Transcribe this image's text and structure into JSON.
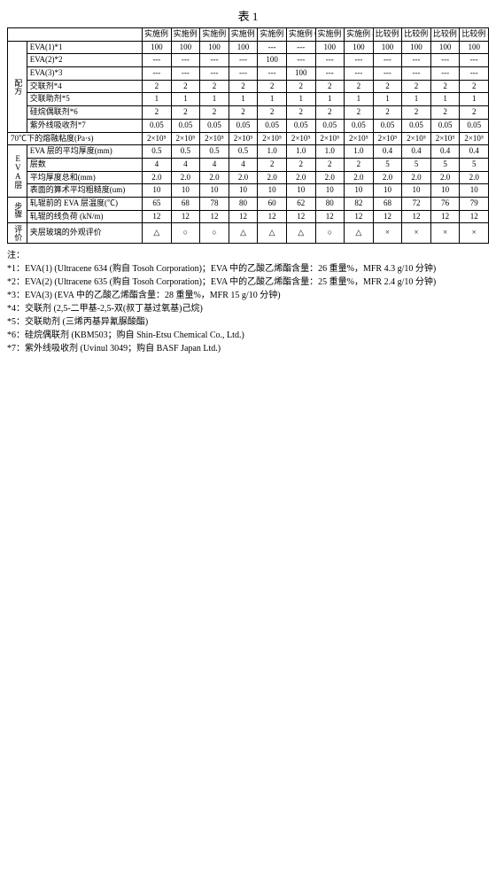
{
  "title": "表 1",
  "col_headers": [
    "实施例 1",
    "实施例 2",
    "实施例 3",
    "实施例 4",
    "实施例 5",
    "实施例 6",
    "实施例 7",
    "实施例 8",
    "比较例 1",
    "比较例 2",
    "比较例 3",
    "比较例 4"
  ],
  "groups": {
    "mix": "配方",
    "eva_layer": "EVA层",
    "step": "步骤",
    "eval": "评价"
  },
  "rows": {
    "r01": {
      "label": "EVA(1)*1",
      "v": [
        "100",
        "100",
        "100",
        "100",
        "---",
        "---",
        "100",
        "100",
        "100",
        "100",
        "100",
        "100"
      ]
    },
    "r02": {
      "label": "EVA(2)*2",
      "v": [
        "---",
        "---",
        "---",
        "---",
        "100",
        "---",
        "---",
        "---",
        "---",
        "---",
        "---",
        "---"
      ]
    },
    "r03": {
      "label": "EVA(3)*3",
      "v": [
        "---",
        "---",
        "---",
        "---",
        "---",
        "100",
        "---",
        "---",
        "---",
        "---",
        "---",
        "---"
      ]
    },
    "r04": {
      "label": "交联剂*4",
      "v": [
        "2",
        "2",
        "2",
        "2",
        "2",
        "2",
        "2",
        "2",
        "2",
        "2",
        "2",
        "2"
      ]
    },
    "r05": {
      "label": "交联助剂*5",
      "v": [
        "1",
        "1",
        "1",
        "1",
        "1",
        "1",
        "1",
        "1",
        "1",
        "1",
        "1",
        "1"
      ]
    },
    "r06": {
      "label": "硅烷偶联剂*6",
      "v": [
        "2",
        "2",
        "2",
        "2",
        "2",
        "2",
        "2",
        "2",
        "2",
        "2",
        "2",
        "2"
      ]
    },
    "r07": {
      "label": "紫外线吸收剂*7",
      "v": [
        "0.05",
        "0.05",
        "0.05",
        "0.05",
        "0.05",
        "0.05",
        "0.05",
        "0.05",
        "0.05",
        "0.05",
        "0.05",
        "0.05"
      ]
    },
    "r08": {
      "label": "70℃下的熔融粘度(Pa·s)",
      "v": [
        "2×10⁵",
        "2×10⁵",
        "2×10⁵",
        "2×10⁵",
        "2×10⁵",
        "2×10⁵",
        "2×10⁵",
        "2×10⁵",
        "2×10⁵",
        "2×10⁵",
        "2×10⁵",
        "2×10⁵"
      ]
    },
    "r09": {
      "label": "EVA 层的平均厚度(mm)",
      "v": [
        "0.5",
        "0.5",
        "0.5",
        "0.5",
        "1.0",
        "1.0",
        "1.0",
        "1.0",
        "0.4",
        "0.4",
        "0.4",
        "0.4"
      ]
    },
    "r10": {
      "label": "层数",
      "v": [
        "4",
        "4",
        "4",
        "4",
        "2",
        "2",
        "2",
        "2",
        "5",
        "5",
        "5",
        "5"
      ]
    },
    "r11": {
      "label": "平均厚度总和(mm)",
      "v": [
        "2.0",
        "2.0",
        "2.0",
        "2.0",
        "2.0",
        "2.0",
        "2.0",
        "2.0",
        "2.0",
        "2.0",
        "2.0",
        "2.0"
      ]
    },
    "r12": {
      "label": "表面的算术平均粗糙度(um)",
      "v": [
        "10",
        "10",
        "10",
        "10",
        "10",
        "10",
        "10",
        "10",
        "10",
        "10",
        "10",
        "10"
      ]
    },
    "r13": {
      "label": "轧辊前的 EVA 层温度(℃)",
      "v": [
        "65",
        "68",
        "78",
        "80",
        "60",
        "62",
        "80",
        "82",
        "68",
        "72",
        "76",
        "79"
      ]
    },
    "r14": {
      "label": "轧辊的线负荷 (kN/m)",
      "v": [
        "12",
        "12",
        "12",
        "12",
        "12",
        "12",
        "12",
        "12",
        "12",
        "12",
        "12",
        "12"
      ]
    },
    "r15": {
      "label": "夹层玻璃的外观评价",
      "v": [
        "△",
        "○",
        "○",
        "△",
        "△",
        "△",
        "○",
        "△",
        "×",
        "×",
        "×",
        "×"
      ]
    }
  },
  "notes": {
    "n0": "注：",
    "n1": "*1：EVA(1) (Ultracene 634 (购自 Tosoh Corporation)；EVA 中的乙酸乙烯酯含量：26 重量%，MFR 4.3 g/10 分钟)",
    "n2": "*2：EVA(2) (Ultracene 635 (购自 Tosoh Corporation)；EVA 中的乙酸乙烯酯含量：25 重量%，MFR 2.4 g/10 分钟)",
    "n3": "*3：EVA(3) (EVA 中的乙酸乙烯酯含量：28 重量%，MFR 15 g/10 分钟)",
    "n4": "*4：交联剂 (2,5-二甲基-2,5-双(叔丁基过氧基)己烷)",
    "n5": "*5：交联助剂 (三烯丙基异氰脲酸酯)",
    "n6": "*6：硅烷偶联剂 (KBM503；购自 Shin-Etsu Chemical Co., Ltd.)",
    "n7": "*7：紫外线吸收剂 (Uvinul 3049；购自 BASF Japan Ltd.)"
  }
}
